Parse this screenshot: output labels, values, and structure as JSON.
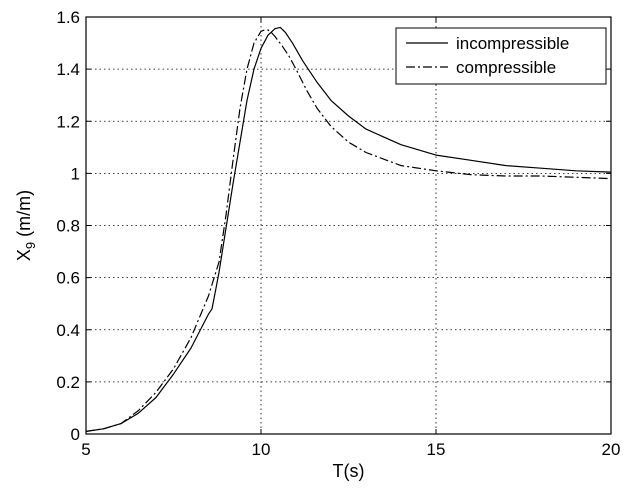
{
  "chart_data": {
    "type": "line",
    "title": "",
    "xlabel": "T(s)",
    "ylabel_main": "X",
    "ylabel_sub": "9",
    "ylabel_unit": " (m/m)",
    "xlim": [
      5,
      20
    ],
    "ylim": [
      0,
      1.6
    ],
    "xticks": [
      "5",
      "10",
      "15",
      "20"
    ],
    "yticks": [
      "0",
      "0.2",
      "0.4",
      "0.6",
      "0.8",
      "1",
      "1.2",
      "1.4",
      "1.6"
    ],
    "grid": true,
    "legend_position": "top-right",
    "series": [
      {
        "name": "incompressible",
        "style": "solid",
        "x": [
          5.0,
          5.5,
          6.0,
          6.5,
          7.0,
          7.5,
          8.0,
          8.5,
          8.6,
          8.7,
          8.8,
          9.0,
          9.2,
          9.4,
          9.6,
          9.8,
          10.0,
          10.2,
          10.4,
          10.55,
          10.7,
          10.9,
          11.2,
          11.6,
          12.0,
          12.5,
          13.0,
          14.0,
          15.0,
          16.0,
          17.0,
          18.0,
          19.0,
          20.0
        ],
        "y": [
          0.01,
          0.02,
          0.04,
          0.08,
          0.14,
          0.23,
          0.33,
          0.46,
          0.48,
          0.55,
          0.62,
          0.79,
          0.96,
          1.12,
          1.28,
          1.4,
          1.48,
          1.53,
          1.555,
          1.56,
          1.54,
          1.5,
          1.43,
          1.35,
          1.28,
          1.22,
          1.17,
          1.11,
          1.07,
          1.05,
          1.03,
          1.02,
          1.01,
          1.005
        ]
      },
      {
        "name": "compressible",
        "style": "dashdot",
        "x": [
          5.0,
          5.5,
          6.0,
          6.5,
          7.0,
          7.5,
          8.0,
          8.5,
          8.8,
          9.0,
          9.2,
          9.4,
          9.6,
          9.8,
          10.0,
          10.1,
          10.2,
          10.3,
          10.4,
          10.6,
          10.8,
          11.0,
          11.3,
          11.6,
          12.0,
          12.5,
          13.0,
          14.0,
          15.0,
          16.0,
          17.0,
          18.0,
          19.0,
          20.0
        ],
        "y": [
          0.01,
          0.02,
          0.04,
          0.09,
          0.16,
          0.25,
          0.37,
          0.53,
          0.66,
          0.84,
          1.05,
          1.25,
          1.4,
          1.5,
          1.545,
          1.55,
          1.55,
          1.54,
          1.525,
          1.49,
          1.45,
          1.4,
          1.32,
          1.25,
          1.18,
          1.12,
          1.08,
          1.03,
          1.01,
          0.995,
          0.99,
          0.99,
          0.985,
          0.98
        ]
      }
    ]
  }
}
